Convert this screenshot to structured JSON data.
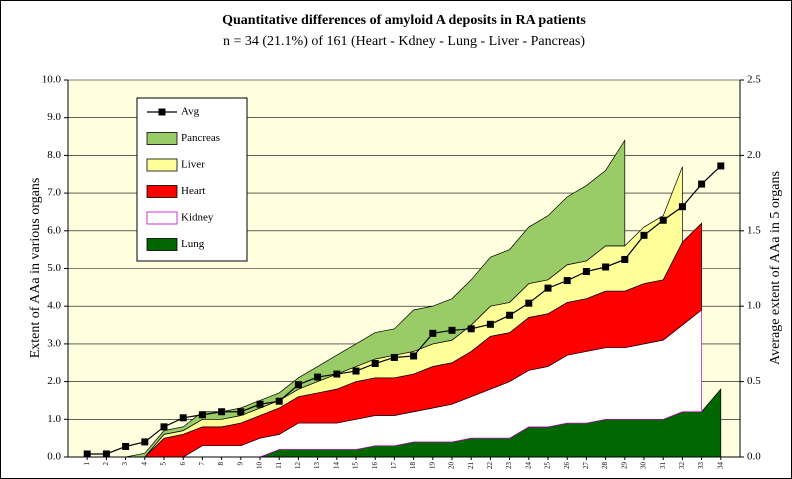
{
  "chart_data": {
    "type": "area",
    "title": "Quantitative differences of amyloid A deposits in RA patients",
    "subtitle": "n = 34 (21.1%) of 161 (Heart - Kdney - Lung - Liver - Pancreas)",
    "y_label": "Extent of AAa in various organs",
    "y2_label": "Average extent of AAa in 5 organs",
    "categories": [
      "1",
      "2",
      "3",
      "4",
      "5",
      "6",
      "7",
      "8",
      "9",
      "10",
      "11",
      "12",
      "13",
      "14",
      "15",
      "16",
      "17",
      "18",
      "19",
      "20",
      "21",
      "22",
      "23",
      "24",
      "25",
      "26",
      "27",
      "28",
      "29",
      "30",
      "31",
      "32",
      "33",
      "34"
    ],
    "series": [
      {
        "name": "Lung",
        "color": "#006600",
        "values": [
          0,
          0,
          0,
          0,
          0,
          0,
          0,
          0,
          0,
          0,
          0.2,
          0.2,
          0.2,
          0.2,
          0.2,
          0.3,
          0.3,
          0.4,
          0.4,
          0.4,
          0.5,
          0.5,
          0.5,
          0.8,
          0.8,
          0.9,
          0.9,
          1.0,
          1.0,
          1.0,
          1.0,
          1.2,
          1.2,
          1.8
        ]
      },
      {
        "name": "Kidney",
        "color": "#ffffff",
        "edge": "#cc00cc",
        "values": [
          0,
          0,
          0,
          0,
          0,
          0,
          0.3,
          0.3,
          0.3,
          0.5,
          0.4,
          0.7,
          0.7,
          0.7,
          0.8,
          0.8,
          0.8,
          0.8,
          0.9,
          1.0,
          1.1,
          1.3,
          1.5,
          1.5,
          1.6,
          1.8,
          1.9,
          1.9,
          1.9,
          2.0,
          2.1,
          2.3,
          2.7,
          null
        ]
      },
      {
        "name": "Heart",
        "color": "#ff0000",
        "values": [
          0,
          0,
          0,
          0,
          0.5,
          0.6,
          0.5,
          0.5,
          0.6,
          0.6,
          0.7,
          0.7,
          0.8,
          0.9,
          1.0,
          1.0,
          1.0,
          1.0,
          1.1,
          1.1,
          1.2,
          1.4,
          1.3,
          1.4,
          1.4,
          1.4,
          1.4,
          1.5,
          1.5,
          1.6,
          1.6,
          2.2,
          2.3,
          null
        ]
      },
      {
        "name": "Liver",
        "color": "#ffff99",
        "values": [
          0,
          0,
          0,
          0,
          0.1,
          0.1,
          0.2,
          0.2,
          0.2,
          0.2,
          0.2,
          0.2,
          0.3,
          0.4,
          0.4,
          0.5,
          0.6,
          0.6,
          0.6,
          0.6,
          0.7,
          0.8,
          0.8,
          0.9,
          0.9,
          1.0,
          1.0,
          1.2,
          1.2,
          1.5,
          1.7,
          2.0,
          null,
          null
        ]
      },
      {
        "name": "Pancreas",
        "color": "#99cc66",
        "values": [
          0,
          0,
          0,
          0.1,
          0.1,
          0.1,
          0.2,
          0.2,
          0.2,
          0.2,
          0.2,
          0.3,
          0.4,
          0.5,
          0.6,
          0.7,
          0.7,
          1.1,
          1.0,
          1.1,
          1.2,
          1.3,
          1.4,
          1.5,
          1.7,
          1.8,
          2.0,
          2.0,
          2.8,
          null,
          null,
          null,
          null,
          null
        ]
      },
      {
        "name": "Avg",
        "color": "#000000",
        "axis": "y2",
        "values": [
          0.02,
          0.02,
          0.07,
          0.1,
          0.2,
          0.26,
          0.28,
          0.3,
          0.3,
          0.35,
          0.37,
          0.48,
          0.53,
          0.55,
          0.57,
          0.62,
          0.66,
          0.67,
          0.82,
          0.84,
          0.85,
          0.88,
          0.94,
          1.02,
          1.12,
          1.17,
          1.23,
          1.26,
          1.31,
          1.47,
          1.57,
          1.66,
          1.81,
          1.93
        ]
      }
    ],
    "ylim": [
      0,
      10
    ],
    "yticks": [
      {
        "value": 0,
        "label": "0.0"
      },
      {
        "value": 1,
        "label": "1.0"
      },
      {
        "value": 2,
        "label": "2.0"
      },
      {
        "value": 3,
        "label": "3.0"
      },
      {
        "value": 4,
        "label": "4.0"
      },
      {
        "value": 5,
        "label": "5.0"
      },
      {
        "value": 6,
        "label": "6.0"
      },
      {
        "value": 7,
        "label": "7.0"
      },
      {
        "value": 8,
        "label": "8.0"
      },
      {
        "value": 9,
        "label": "9.0"
      },
      {
        "value": 10,
        "label": "10.0"
      }
    ],
    "y2lim": [
      0,
      2.5
    ],
    "y2ticks": [
      {
        "value": 0,
        "label": "0.0"
      },
      0.5,
      {
        "value": 1,
        "label": "1.0"
      },
      1.5,
      {
        "value": 2,
        "label": "2.0"
      },
      2.5
    ],
    "grid": true,
    "legend": "upper left",
    "background": "#ffffe0"
  }
}
